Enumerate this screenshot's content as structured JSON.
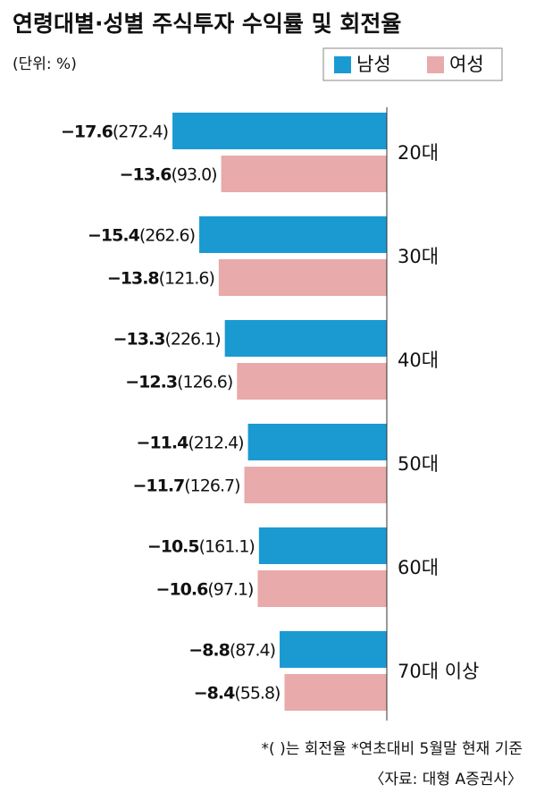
{
  "chart_data": {
    "type": "hbar",
    "title": "연령대별·성별 주식투자 수익률 및 회전율",
    "unit": "(단위: %)",
    "categories": [
      "20대",
      "30대",
      "40대",
      "50대",
      "60대",
      "70대 이상"
    ],
    "series": [
      {
        "name": "남성",
        "color": "#1b9ad2",
        "values": [
          -17.6,
          -15.4,
          -13.3,
          -11.4,
          -10.5,
          -8.8
        ],
        "value_labels": [
          "−17.6",
          "−15.4",
          "−13.3",
          "−11.4",
          "−10.5",
          "−8.8"
        ],
        "turnover": [
          272.4,
          262.6,
          226.1,
          212.4,
          161.1,
          87.4
        ],
        "turnover_labels": [
          "(272.4)",
          "(262.6)",
          "(226.1)",
          "(212.4)",
          "(161.1)",
          "(87.4)"
        ]
      },
      {
        "name": "여성",
        "color": "#e8aaaa",
        "values": [
          -13.6,
          -13.8,
          -12.3,
          -11.7,
          -10.6,
          -8.4
        ],
        "value_labels": [
          "−13.6",
          "−13.8",
          "−12.3",
          "−11.7",
          "−10.6",
          "−8.4"
        ],
        "turnover": [
          93.0,
          121.6,
          126.6,
          126.7,
          97.1,
          55.8
        ],
        "turnover_labels": [
          "(93.0)",
          "(121.6)",
          "(126.6)",
          "(126.7)",
          "(97.1)",
          "(55.8)"
        ]
      }
    ],
    "xlim": [
      -30,
      0
    ],
    "notes": [
      "*(  )는 회전율 *연초대비 5월말 현재 기준",
      "〈자료: 대형 A증권사〉"
    ]
  }
}
